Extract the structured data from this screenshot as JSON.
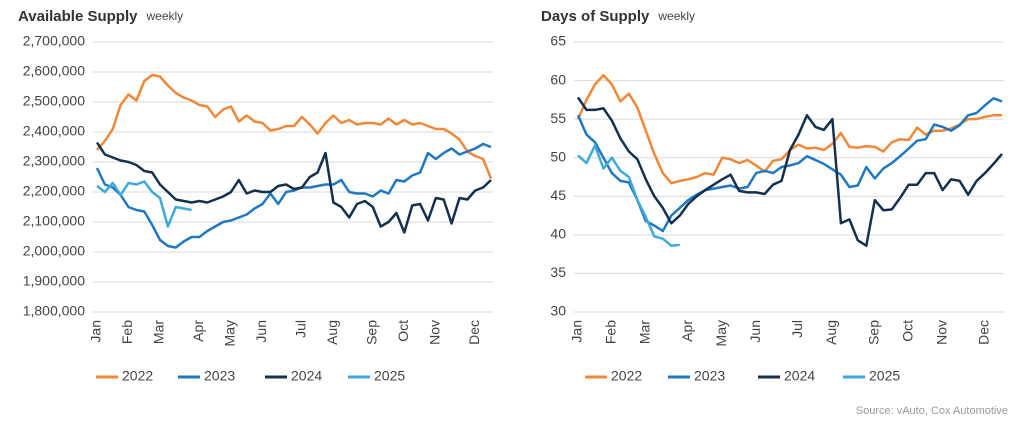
{
  "chart_data": [
    {
      "type": "line",
      "title": "Available Supply",
      "subtitle": "weekly",
      "categories": [
        "Jan",
        null,
        null,
        null,
        "Feb",
        null,
        null,
        null,
        "Mar",
        null,
        null,
        null,
        null,
        "Apr",
        null,
        null,
        null,
        "May",
        null,
        null,
        null,
        "Jun",
        null,
        null,
        null,
        null,
        "Jul",
        null,
        null,
        null,
        "Aug",
        null,
        null,
        null,
        null,
        "Sep",
        null,
        null,
        null,
        "Oct",
        null,
        null,
        null,
        "Nov",
        null,
        null,
        null,
        null,
        "Dec",
        null,
        null
      ],
      "ylim": [
        1800000,
        2700000
      ],
      "yticks": [
        {
          "value": 1800000,
          "label": "1,800,000"
        },
        {
          "value": 1900000,
          "label": "1,900,000"
        },
        {
          "value": 2000000,
          "label": "2,000,000"
        },
        {
          "value": 2100000,
          "label": "2,100,000"
        },
        {
          "value": 2200000,
          "label": "2,200,000"
        },
        {
          "value": 2300000,
          "label": "2,300,000"
        },
        {
          "value": 2400000,
          "label": "2,400,000"
        },
        {
          "value": 2500000,
          "label": "2,500,000"
        },
        {
          "value": 2600000,
          "label": "2,600,000"
        },
        {
          "value": 2700000,
          "label": "2,700,000"
        }
      ],
      "grid": true,
      "series": [
        {
          "name": "2022",
          "color": "#f0883a",
          "values": [
            2340000,
            2370000,
            2410000,
            2490000,
            2525000,
            2505000,
            2570000,
            2590000,
            2585000,
            2555000,
            2530000,
            2515000,
            2505000,
            2490000,
            2485000,
            2450000,
            2475000,
            2485000,
            2435000,
            2455000,
            2435000,
            2430000,
            2405000,
            2410000,
            2420000,
            2420000,
            2450000,
            2425000,
            2395000,
            2430000,
            2455000,
            2430000,
            2440000,
            2425000,
            2430000,
            2430000,
            2425000,
            2445000,
            2425000,
            2440000,
            2425000,
            2430000,
            2420000,
            2410000,
            2410000,
            2395000,
            2375000,
            2335000,
            2320000,
            2310000,
            2245000
          ]
        },
        {
          "name": "2023",
          "color": "#1f78c1",
          "values": [
            2280000,
            2225000,
            2215000,
            2190000,
            2150000,
            2140000,
            2135000,
            2090000,
            2040000,
            2020000,
            2015000,
            2035000,
            2050000,
            2050000,
            2070000,
            2085000,
            2100000,
            2105000,
            2115000,
            2125000,
            2145000,
            2160000,
            2195000,
            2160000,
            2200000,
            2205000,
            2215000,
            2215000,
            2220000,
            2225000,
            2225000,
            2240000,
            2200000,
            2195000,
            2195000,
            2185000,
            2205000,
            2195000,
            2240000,
            2235000,
            2255000,
            2265000,
            2330000,
            2310000,
            2330000,
            2345000,
            2325000,
            2335000,
            2345000,
            2360000,
            2350000
          ]
        },
        {
          "name": "2024",
          "color": "#14304f",
          "values": [
            2365000,
            2325000,
            2315000,
            2305000,
            2300000,
            2290000,
            2270000,
            2265000,
            2225000,
            2200000,
            2175000,
            2170000,
            2165000,
            2170000,
            2165000,
            2175000,
            2185000,
            2200000,
            2240000,
            2195000,
            2205000,
            2200000,
            2200000,
            2220000,
            2225000,
            2210000,
            2215000,
            2250000,
            2265000,
            2330000,
            2165000,
            2150000,
            2115000,
            2160000,
            2170000,
            2150000,
            2085000,
            2100000,
            2130000,
            2065000,
            2155000,
            2160000,
            2105000,
            2180000,
            2175000,
            2095000,
            2180000,
            2175000,
            2205000,
            2215000,
            2240000
          ]
        },
        {
          "name": "2025",
          "color": "#3fa9d8",
          "values": [
            2220000,
            2200000,
            2230000,
            2190000,
            2230000,
            2225000,
            2235000,
            2200000,
            2180000,
            2085000,
            2150000,
            2145000,
            2140000,
            null,
            null,
            null,
            null,
            null,
            null,
            null,
            null,
            null,
            null,
            null,
            null,
            null,
            null,
            null,
            null,
            null,
            null,
            null,
            null,
            null,
            null,
            null,
            null,
            null,
            null,
            null,
            null,
            null,
            null,
            null,
            null,
            null,
            null,
            null,
            null,
            null,
            null
          ]
        }
      ]
    },
    {
      "type": "line",
      "title": "Days of Supply",
      "subtitle": "weekly",
      "categories": [
        "Jan",
        null,
        null,
        null,
        "Feb",
        null,
        null,
        null,
        "Mar",
        null,
        null,
        null,
        null,
        "Apr",
        null,
        null,
        null,
        "May",
        null,
        null,
        null,
        "Jun",
        null,
        null,
        null,
        null,
        "Jul",
        null,
        null,
        null,
        "Aug",
        null,
        null,
        null,
        null,
        "Sep",
        null,
        null,
        null,
        "Oct",
        null,
        null,
        null,
        "Nov",
        null,
        null,
        null,
        null,
        "Dec",
        null,
        null
      ],
      "ylim": [
        30,
        65
      ],
      "yticks": [
        30,
        35,
        40,
        45,
        50,
        55,
        60,
        65
      ],
      "grid": true,
      "series": [
        {
          "name": "2022",
          "color": "#f0883a",
          "values": [
            55,
            57.5,
            59.5,
            60.7,
            59.5,
            57.3,
            58.3,
            56.5,
            53.5,
            50.5,
            48,
            46.7,
            47,
            47.2,
            47.5,
            48,
            47.8,
            50,
            49.8,
            49.3,
            49.7,
            49,
            48.2,
            49.6,
            49.8,
            51,
            51.7,
            51.2,
            51.3,
            51,
            51.8,
            53.2,
            51.4,
            51.3,
            51.5,
            51.4,
            50.8,
            52,
            52.4,
            52.3,
            53.9,
            53,
            53.5,
            53.5,
            53.8,
            54.3,
            55,
            55,
            55.3,
            55.5,
            55.5
          ]
        },
        {
          "name": "2023",
          "color": "#1f78c1",
          "values": [
            55.5,
            53,
            52,
            50,
            48,
            47,
            46.8,
            44.5,
            41.8,
            41.2,
            40.5,
            42.5,
            43.5,
            44.5,
            45.2,
            45.8,
            46,
            46.2,
            46.4,
            46,
            46.2,
            48,
            48.3,
            48,
            48.8,
            49,
            49.3,
            50.2,
            49.7,
            49.2,
            48.5,
            47.8,
            46.2,
            46.4,
            48.8,
            47.3,
            48.6,
            49.3,
            50.2,
            51.2,
            52.2,
            52.4,
            54.3,
            54,
            53.5,
            54.2,
            55.5,
            55.8,
            56.8,
            57.7,
            57.3
          ]
        },
        {
          "name": "2024",
          "color": "#14304f",
          "values": [
            57.8,
            56.2,
            56.2,
            56.4,
            54.8,
            52.5,
            50.8,
            49.8,
            47.2,
            45,
            43.5,
            41.5,
            42.5,
            44,
            45,
            45.8,
            46.5,
            47.2,
            47.8,
            45.7,
            45.5,
            45.5,
            45.3,
            46.5,
            47,
            51,
            53,
            55.5,
            54,
            53.6,
            55,
            41.5,
            42,
            39.3,
            38.6,
            44.5,
            43.2,
            43.3,
            44.8,
            46.5,
            46.5,
            48,
            48,
            45.8,
            47.2,
            47,
            45.2,
            47,
            48,
            49.2,
            50.5
          ]
        },
        {
          "name": "2025",
          "color": "#3fa9d8",
          "values": [
            50.3,
            49.3,
            51.6,
            48.6,
            50,
            48.3,
            47.5,
            44.5,
            42.3,
            39.8,
            39.5,
            38.6,
            38.7,
            null,
            null,
            null,
            null,
            null,
            null,
            null,
            null,
            null,
            null,
            null,
            null,
            null,
            null,
            null,
            null,
            null,
            null,
            null,
            null,
            null,
            null,
            null,
            null,
            null,
            null,
            null,
            null,
            null,
            null,
            null,
            null,
            null,
            null,
            null,
            null,
            null,
            null
          ]
        }
      ]
    }
  ],
  "source": "Source: vAuto, Cox Automotive"
}
